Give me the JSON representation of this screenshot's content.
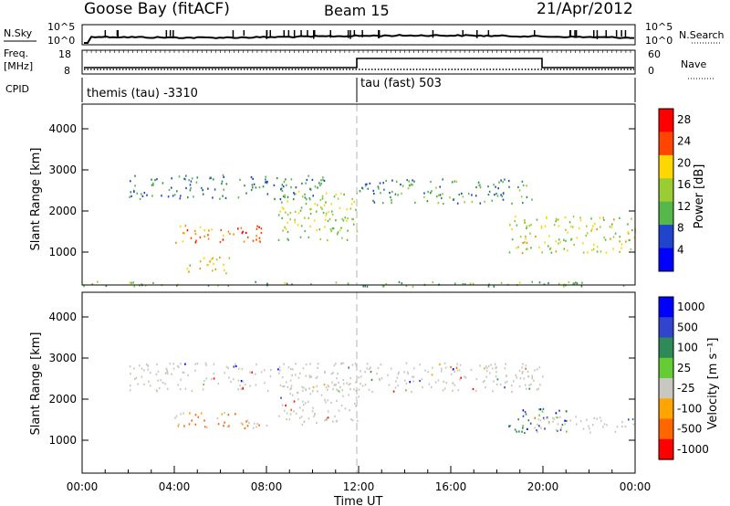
{
  "header": {
    "station": "Goose Bay (fitACF)",
    "beam": "Beam 15",
    "date": "21/Apr/2012"
  },
  "noise_panel": {
    "left_label": "N.Sky",
    "right_label": "N.Search",
    "left_ticks": [
      "10^5",
      "10^0"
    ],
    "right_ticks": [
      "10^5",
      "10^0"
    ]
  },
  "freq_panel": {
    "left_label_line1": "Freq.",
    "left_label_line2": "[MHz]",
    "right_label": "Nave",
    "left_ticks": [
      "18",
      "8"
    ],
    "right_ticks": [
      "60",
      "0"
    ]
  },
  "cpid_panel": {
    "label": "CPID",
    "modes": [
      "themis (tau) -3310",
      "tau (fast) 503"
    ]
  },
  "colors": {
    "power": [
      "#0000ff",
      "#2244cc",
      "#2e8b57",
      "#55b84a",
      "#9acd32",
      "#ffd700",
      "#ff8c00",
      "#ff4500",
      "#ff0000"
    ],
    "velocity": [
      "#0000ff",
      "#3344cc",
      "#2e8b57",
      "#66cc33",
      "#c8c8c0",
      "#ffa500",
      "#ff6600",
      "#ff0000"
    ],
    "ground_scatter": "#c8c8c0"
  },
  "chart_data": [
    {
      "type": "heatmap",
      "name": "power",
      "ylabel": "Slant Range [km]",
      "yticks": [
        "1000",
        "2000",
        "3000",
        "4000"
      ],
      "ylim": [
        200,
        4600
      ],
      "colorbar_label": "Power [dB]",
      "colorbar_ticks": [
        "4",
        "8",
        "12",
        "16",
        "20",
        "24",
        "28"
      ],
      "colorbar_range": [
        0,
        30
      ],
      "echo_regions": [
        {
          "t0": 2.0,
          "t1": 10.5,
          "r0": 2300,
          "r1": 2900,
          "level": 0.25
        },
        {
          "t0": 4.0,
          "t1": 8.0,
          "r0": 1250,
          "r1": 1700,
          "level": 0.8
        },
        {
          "t0": 8.5,
          "t1": 12.0,
          "r0": 1300,
          "r1": 2500,
          "level": 0.5
        },
        {
          "t0": 12.0,
          "t1": 19.5,
          "r0": 2200,
          "r1": 2800,
          "level": 0.3
        },
        {
          "t0": 18.5,
          "t1": 24.0,
          "r0": 1000,
          "r1": 1900,
          "level": 0.55
        },
        {
          "t0": 4.5,
          "t1": 6.5,
          "r0": 500,
          "r1": 900,
          "level": 0.6
        },
        {
          "t0": 0.0,
          "t1": 24.0,
          "r0": 180,
          "r1": 300,
          "level": 0.4
        }
      ]
    },
    {
      "type": "heatmap",
      "name": "velocity",
      "ylabel": "Slant Range [km]",
      "xlabel": "Time UT",
      "yticks": [
        "1000",
        "2000",
        "3000",
        "4000"
      ],
      "ylim": [
        200,
        4600
      ],
      "xticks": [
        "00:00",
        "04:00",
        "08:00",
        "12:00",
        "16:00",
        "20:00",
        "00:00"
      ],
      "xlim": [
        0,
        24
      ],
      "colorbar_label": "Velocity [m s⁻¹]",
      "colorbar_ticks": [
        "1000",
        "500",
        "100",
        "25",
        "-25",
        "-100",
        "-500",
        "-1000"
      ],
      "echo_regions": [
        {
          "t0": 2.0,
          "t1": 20.0,
          "r0": 2200,
          "r1": 2900,
          "class": "ground"
        },
        {
          "t0": 4.0,
          "t1": 8.0,
          "r0": 1300,
          "r1": 1700,
          "class": "negative"
        },
        {
          "t0": 8.5,
          "t1": 12.0,
          "r0": 1400,
          "r1": 2400,
          "class": "ground"
        },
        {
          "t0": 18.5,
          "t1": 21.0,
          "r0": 1200,
          "r1": 1800,
          "class": "positive"
        },
        {
          "t0": 19.5,
          "t1": 24.0,
          "r0": 1200,
          "r1": 1600,
          "class": "ground"
        }
      ]
    }
  ]
}
